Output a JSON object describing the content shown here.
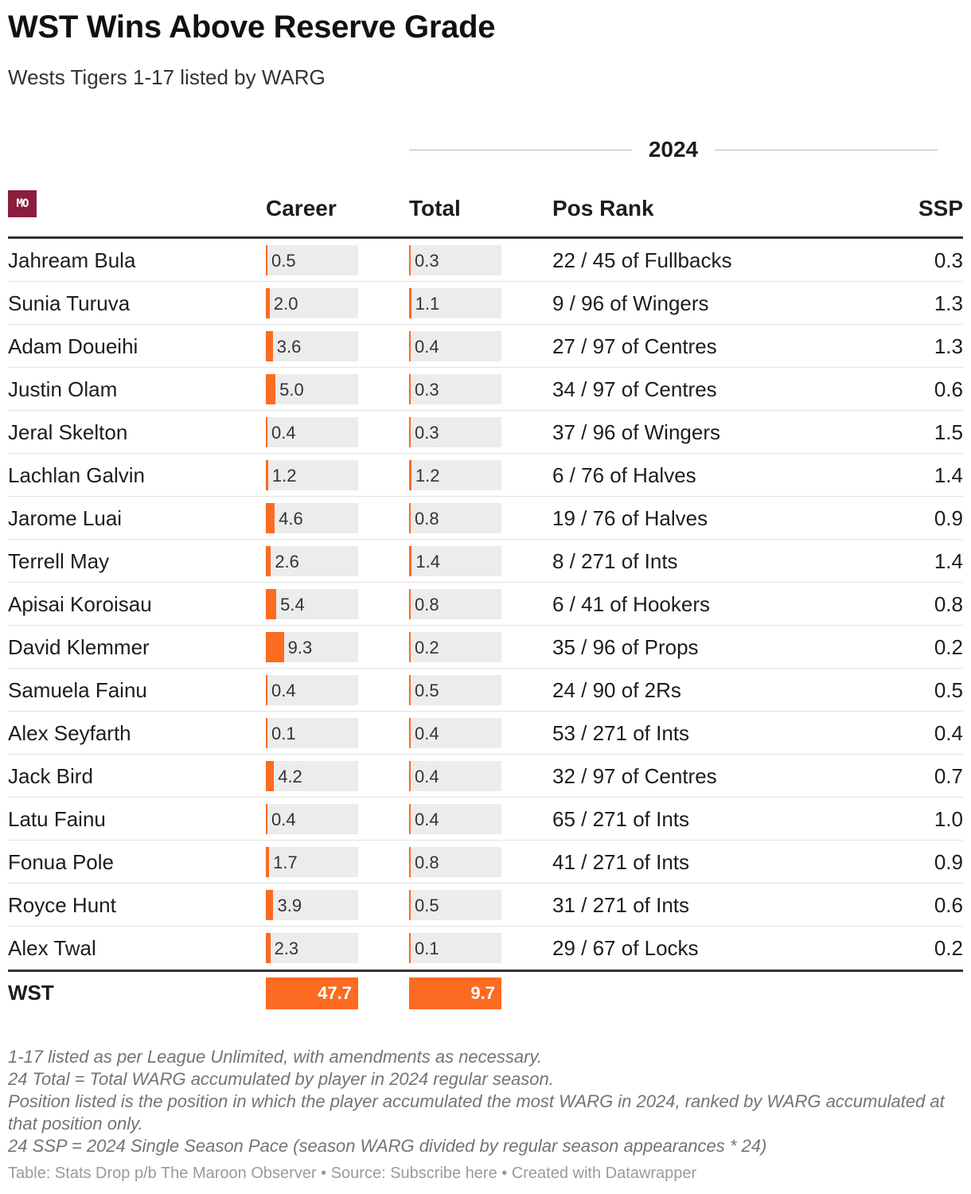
{
  "header": {
    "title": "WST Wins Above Reserve Grade",
    "subtitle": "Wests Tigers 1-17 listed by WARG",
    "group_label": "2024",
    "logo_text": "MO"
  },
  "columns": {
    "career": "Career",
    "total": "Total",
    "pos_rank": "Pos Rank",
    "ssp": "SSP"
  },
  "colors": {
    "bar": "#fb6b21",
    "bar_background": "#ececec",
    "logo": "#8a1f3d"
  },
  "chart_data": {
    "type": "table",
    "bar_scale_max": 47.7,
    "rows": [
      {
        "player": "Jahream Bula",
        "career": "0.5",
        "total": "0.3",
        "pos_rank": "22 / 45 of Fullbacks",
        "ssp": "0.3"
      },
      {
        "player": "Sunia Turuva",
        "career": "2.0",
        "total": "1.1",
        "pos_rank": "9 / 96 of Wingers",
        "ssp": "1.3"
      },
      {
        "player": "Adam Doueihi",
        "career": "3.6",
        "total": "0.4",
        "pos_rank": "27 / 97 of Centres",
        "ssp": "1.3"
      },
      {
        "player": "Justin Olam",
        "career": "5.0",
        "total": "0.3",
        "pos_rank": "34 / 97 of Centres",
        "ssp": "0.6"
      },
      {
        "player": "Jeral Skelton",
        "career": "0.4",
        "total": "0.3",
        "pos_rank": "37 / 96 of Wingers",
        "ssp": "1.5"
      },
      {
        "player": "Lachlan Galvin",
        "career": "1.2",
        "total": "1.2",
        "pos_rank": "6 / 76 of Halves",
        "ssp": "1.4"
      },
      {
        "player": "Jarome Luai",
        "career": "4.6",
        "total": "0.8",
        "pos_rank": "19 / 76 of Halves",
        "ssp": "0.9"
      },
      {
        "player": "Terrell May",
        "career": "2.6",
        "total": "1.4",
        "pos_rank": "8 / 271 of Ints",
        "ssp": "1.4"
      },
      {
        "player": "Apisai Koroisau",
        "career": "5.4",
        "total": "0.8",
        "pos_rank": "6 / 41 of Hookers",
        "ssp": "0.8"
      },
      {
        "player": "David Klemmer",
        "career": "9.3",
        "total": "0.2",
        "pos_rank": "35 / 96 of Props",
        "ssp": "0.2"
      },
      {
        "player": "Samuela Fainu",
        "career": "0.4",
        "total": "0.5",
        "pos_rank": "24 / 90 of 2Rs",
        "ssp": "0.5"
      },
      {
        "player": "Alex Seyfarth",
        "career": "0.1",
        "total": "0.4",
        "pos_rank": "53 / 271 of Ints",
        "ssp": "0.4"
      },
      {
        "player": "Jack Bird",
        "career": "4.2",
        "total": "0.4",
        "pos_rank": "32 / 97 of Centres",
        "ssp": "0.7"
      },
      {
        "player": "Latu Fainu",
        "career": "0.4",
        "total": "0.4",
        "pos_rank": "65 / 271 of Ints",
        "ssp": "1.0"
      },
      {
        "player": "Fonua Pole",
        "career": "1.7",
        "total": "0.8",
        "pos_rank": "41 / 271 of Ints",
        "ssp": "0.9"
      },
      {
        "player": "Royce Hunt",
        "career": "3.9",
        "total": "0.5",
        "pos_rank": "31 / 271 of Ints",
        "ssp": "0.6"
      },
      {
        "player": "Alex Twal",
        "career": "2.3",
        "total": "0.1",
        "pos_rank": "29 / 67 of Locks",
        "ssp": "0.2"
      }
    ],
    "totals": {
      "team": "WST",
      "career": "47.7",
      "total": "9.7"
    }
  },
  "footer": {
    "notes": [
      "1-17 listed as per League Unlimited, with amendments as necessary.",
      "24 Total = Total WARG accumulated by player in 2024 regular season.",
      "Position listed is the position in which the player accumulated the most WARG in 2024, ranked by WARG accumulated at that position only.",
      "24 SSP = 2024 Single Season Pace (season WARG divided by regular season appearances * 24)"
    ],
    "credit": "Table: Stats Drop p/b The Maroon Observer • Source: Subscribe here • Created with Datawrapper"
  }
}
